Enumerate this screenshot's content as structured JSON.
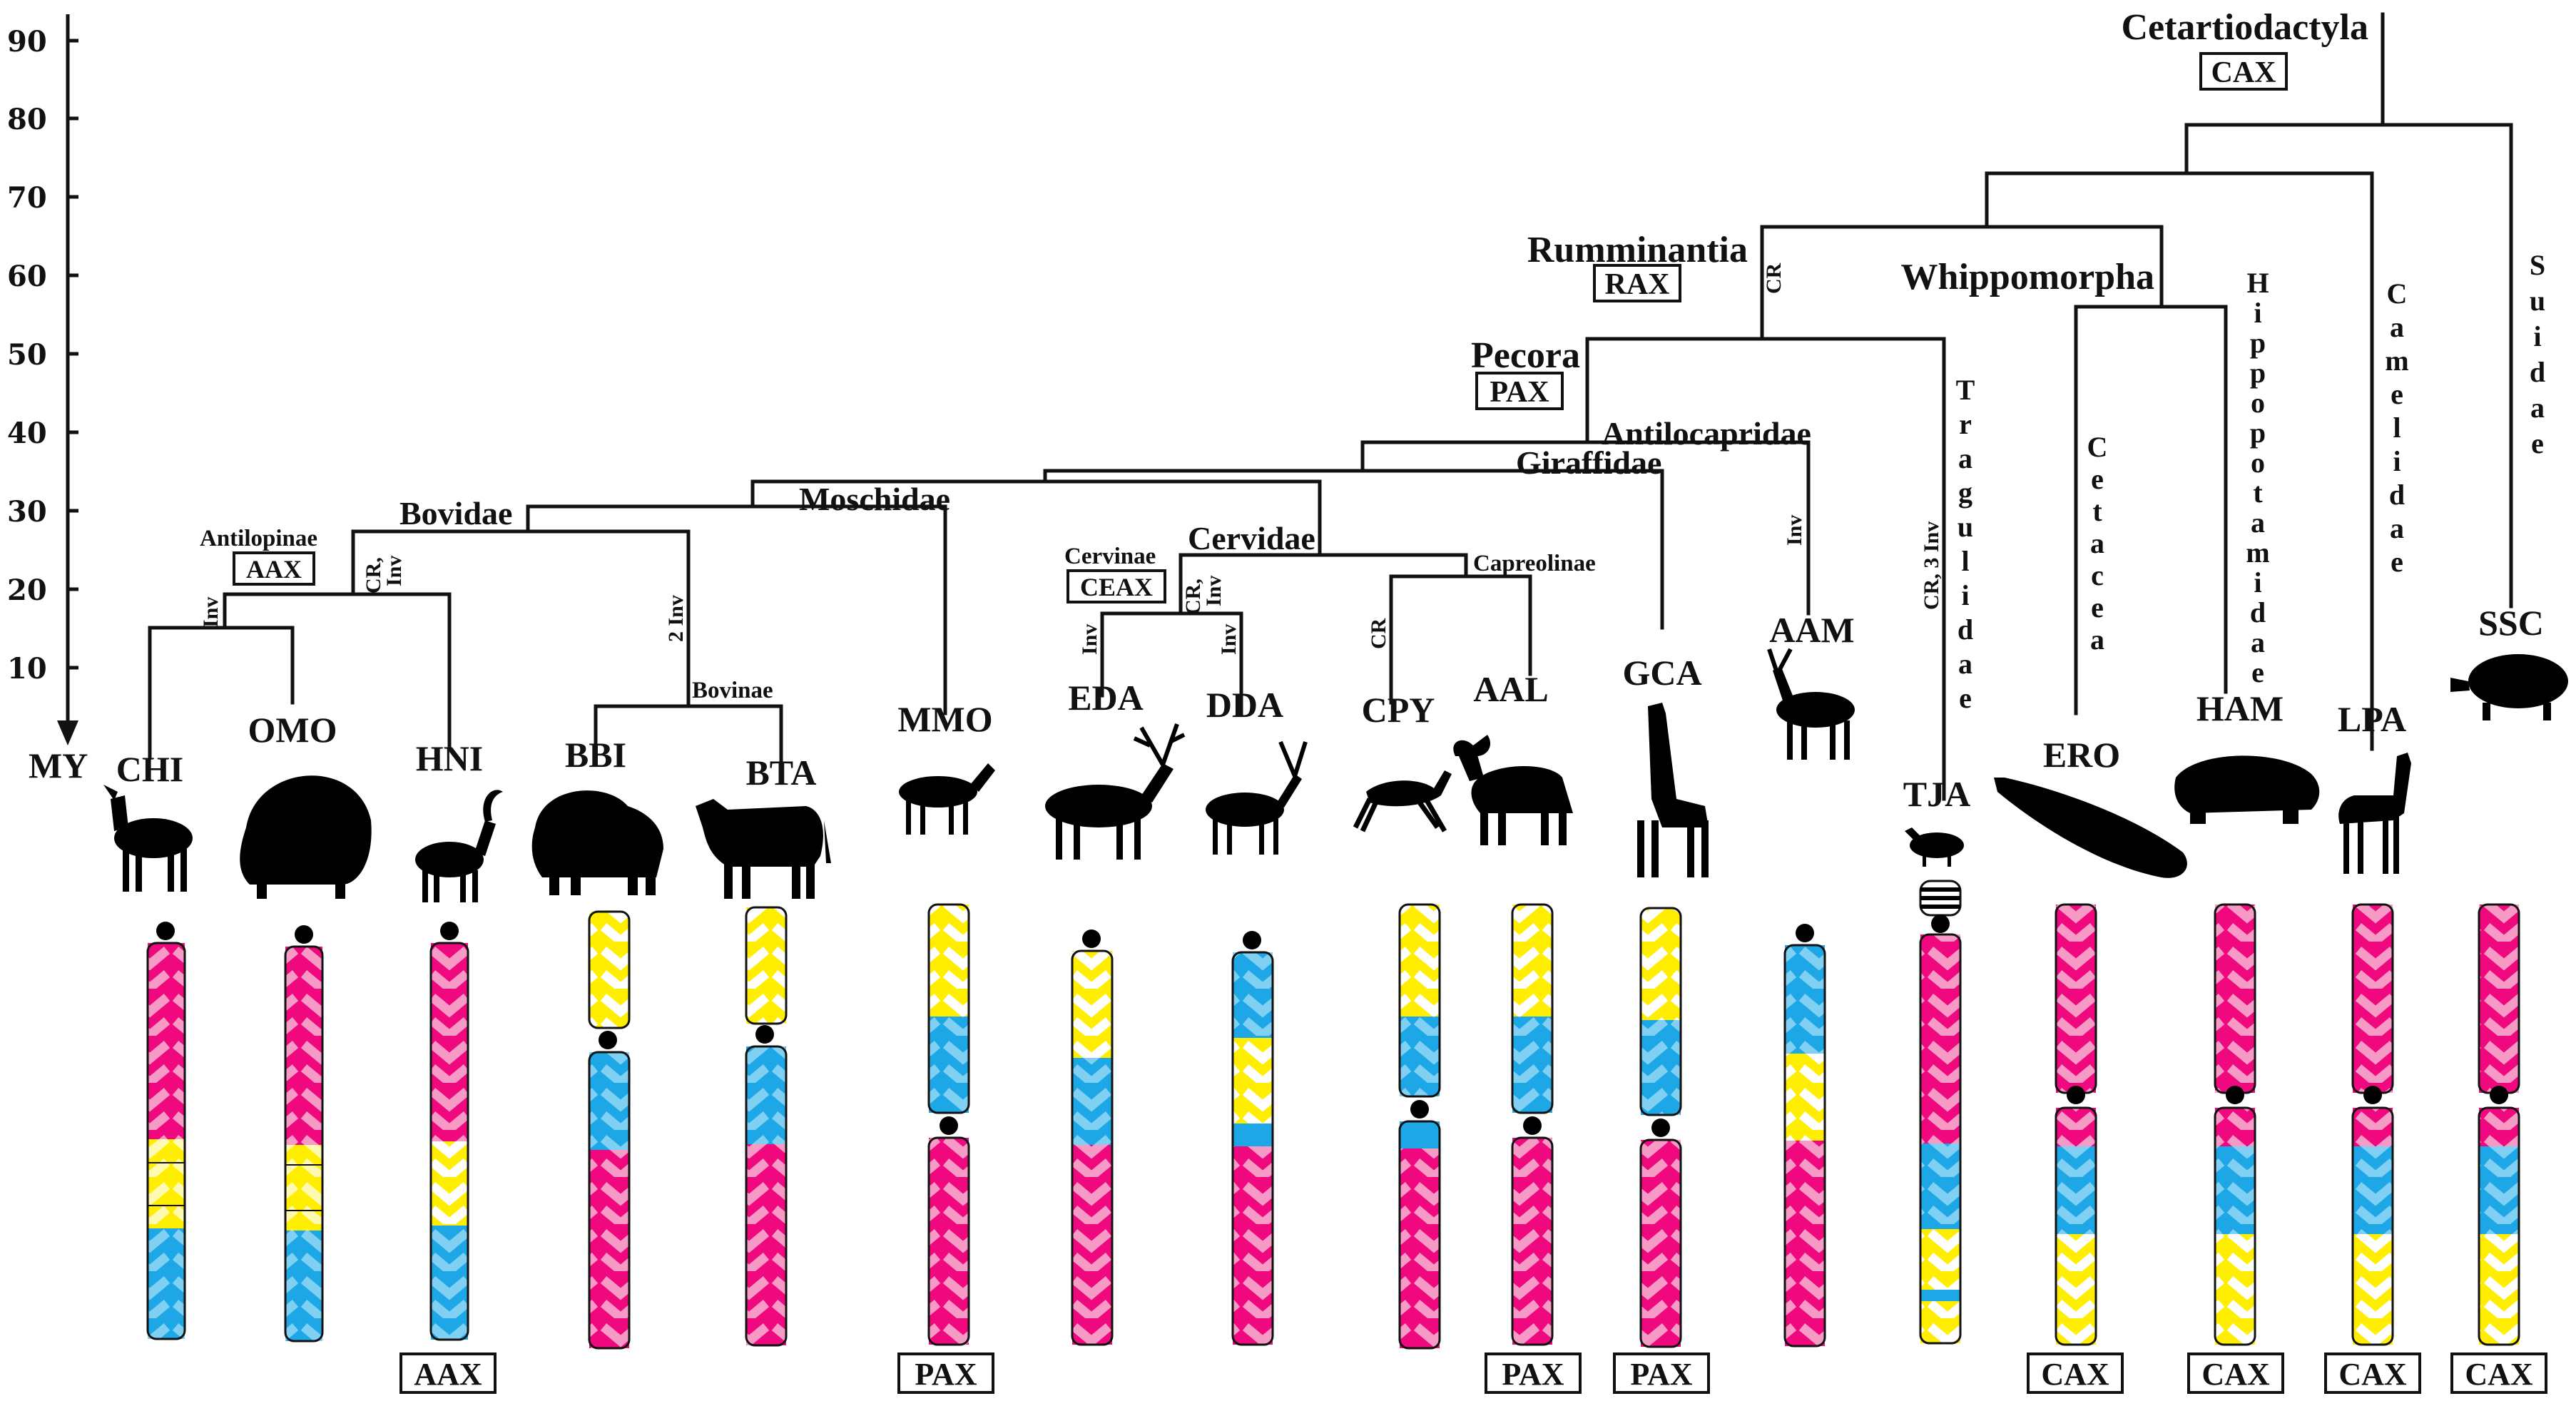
{
  "axis": {
    "unit": "MY",
    "ticks": [
      "90",
      "80",
      "70",
      "60",
      "50",
      "40",
      "30",
      "20",
      "10"
    ]
  },
  "clades": {
    "cetartiodactyla": "Cetartiodactyla",
    "rumminantia": "Rumminantia",
    "whippomorpha": "Whippomorpha",
    "pecora": "Pecora",
    "antilocapridae": "Antilocapridae",
    "giraffidae": "Giraffidae",
    "moschidae": "Moschidae",
    "bovidae": "Bovidae",
    "antilopinae": "Antilopinae",
    "bovinae": "Bovinae",
    "cervinae": "Cervinae",
    "cervidae": "Cervidae",
    "capreolinae": "Capreolinae"
  },
  "vertical_labels": {
    "suidae": "Suidae",
    "camelidae": "Camelidae",
    "hippopotamidae": "Hippopotamidae",
    "cetacea": "Cetacea",
    "tragulidae": "Tragulidae"
  },
  "ancestral_boxes": {
    "cax": "CAX",
    "rax": "RAX",
    "pax": "PAX",
    "aax": "AAX",
    "ceax": "CEAX"
  },
  "events": {
    "rum_cr": "CR",
    "antilopinae_inv": "Inv",
    "hni_cr": "CR,",
    "hni_inv": "Inv",
    "bovinae_2inv": "2 Inv",
    "eda_inv": "Inv",
    "dda_cr": "CR,",
    "dda_inv": "Inv",
    "cpy_cr": "CR",
    "aam_inv": "Inv",
    "tja_cr3inv": "CR, 3 Inv"
  },
  "species": {
    "chi": "CHI",
    "omo": "OMO",
    "hni": "HNI",
    "bbi": "BBI",
    "bta": "BTA",
    "mmo": "MMO",
    "eda": "EDA",
    "dda": "DDA",
    "cpy": "CPY",
    "aal": "AAL",
    "gca": "GCA",
    "aam": "AAM",
    "tja": "TJA",
    "ero": "ERO",
    "ham": "HAM",
    "lpa": "LPA",
    "ssc": "SSC"
  },
  "bottom_boxes": {
    "b1": "AAX",
    "b2": "PAX",
    "b3": "PAX",
    "b4": "PAX",
    "b5": "CAX",
    "b6": "CAX",
    "b7": "CAX",
    "b8": "CAX"
  },
  "colors": {
    "magenta": "#f0087e",
    "blue": "#1ea7e6",
    "yellow": "#ffee00",
    "chevron_on_magenta": "#f79ac6",
    "chevron_on_blue": "#7fd0f3",
    "chevron_on_yellow": "#ffffff",
    "centromere": "#000000"
  }
}
